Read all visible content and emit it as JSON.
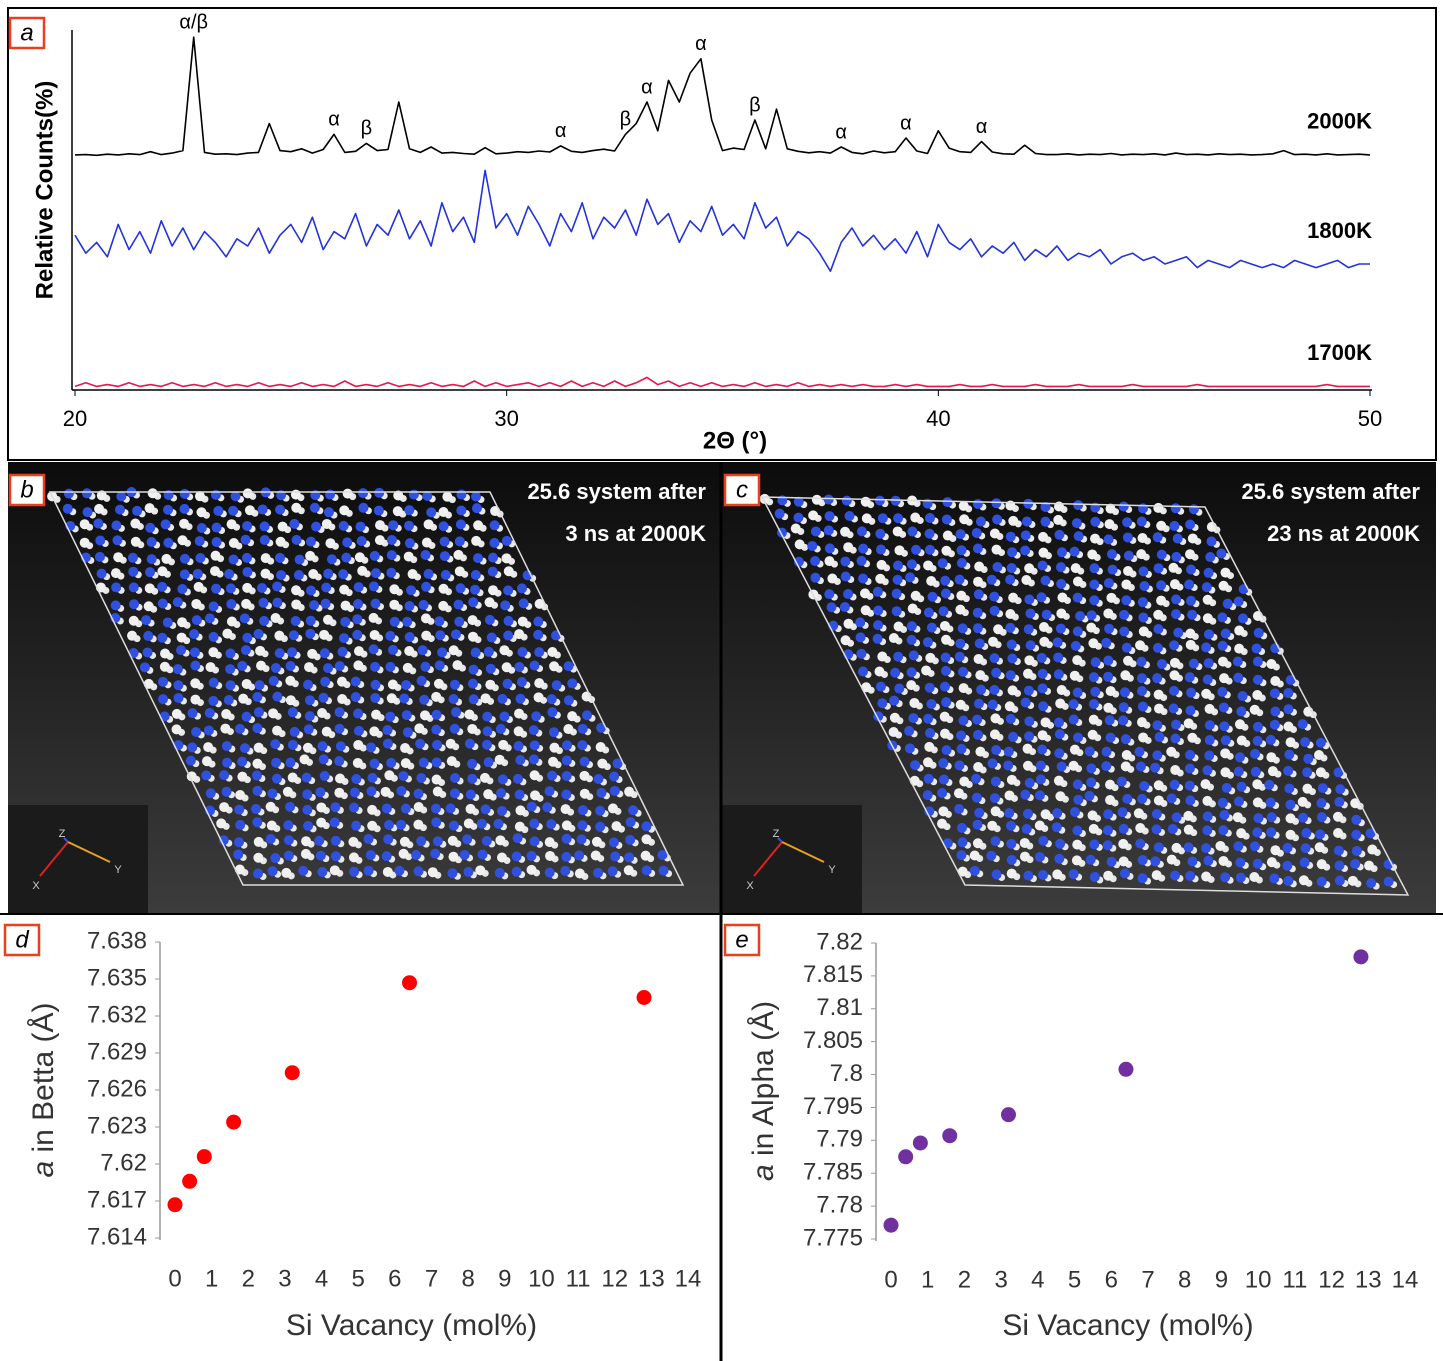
{
  "chart_data": [
    {
      "type": "line",
      "panel": "a",
      "xlabel": "2Θ (°)",
      "ylabel": "Relative Counts(%)",
      "xlim": [
        20,
        50
      ],
      "ylim": [
        0,
        100
      ],
      "xticks": [
        20,
        30,
        40,
        50
      ],
      "x": [
        20,
        20.25,
        20.5,
        20.75,
        21,
        21.25,
        21.5,
        21.75,
        22,
        22.25,
        22.5,
        22.75,
        23,
        23.25,
        23.5,
        23.75,
        24,
        24.25,
        24.5,
        24.75,
        25,
        25.25,
        25.5,
        25.75,
        26,
        26.25,
        26.5,
        26.75,
        27,
        27.25,
        27.5,
        27.75,
        28,
        28.25,
        28.5,
        28.75,
        29,
        29.25,
        29.5,
        29.75,
        30,
        30.25,
        30.5,
        30.75,
        31,
        31.25,
        31.5,
        31.75,
        32,
        32.25,
        32.5,
        32.75,
        33,
        33.25,
        33.5,
        33.75,
        34,
        34.25,
        34.5,
        34.75,
        35,
        35.25,
        35.5,
        35.75,
        36,
        36.25,
        36.5,
        36.75,
        37,
        37.25,
        37.5,
        37.75,
        38,
        38.25,
        38.5,
        38.75,
        39,
        39.25,
        39.5,
        39.75,
        40,
        40.25,
        40.5,
        40.75,
        41,
        41.25,
        41.5,
        41.75,
        42,
        42.25,
        42.5,
        42.75,
        43,
        43.25,
        43.5,
        43.75,
        44,
        44.25,
        44.5,
        44.75,
        45,
        45.25,
        45.5,
        45.75,
        46,
        46.25,
        46.5,
        46.75,
        47,
        47.25,
        47.5,
        47.75,
        48,
        48.25,
        48.5,
        48.75,
        49,
        49.25,
        49.5,
        49.75,
        50
      ],
      "series": [
        {
          "name": "2000K",
          "color": "#000000",
          "values": [
            65.3,
            65.4,
            65.2,
            65.5,
            65.3,
            65.6,
            65.4,
            66.2,
            65.4,
            65.8,
            66.5,
            98,
            66,
            65.5,
            65.6,
            65.4,
            65.8,
            66,
            74,
            66.5,
            66.2,
            67,
            65.8,
            66.8,
            71,
            66,
            66.3,
            68.5,
            66.5,
            66.8,
            80,
            67,
            66,
            67.5,
            65.8,
            66,
            65.7,
            65.5,
            67.3,
            65.6,
            65.8,
            66.2,
            66,
            66.4,
            66.1,
            67.8,
            66.3,
            66,
            66.5,
            66.9,
            66.4,
            71,
            74,
            80,
            72,
            86,
            80,
            88,
            92,
            75,
            66.5,
            67.2,
            66.8,
            75,
            67,
            78,
            67,
            66.3,
            65.9,
            66.2,
            65.8,
            67.5,
            66,
            65.6,
            66.4,
            65.9,
            66.2,
            70,
            66.4,
            65.7,
            72,
            67.2,
            66.2,
            66,
            69,
            66.1,
            65.6,
            65.5,
            68,
            65.7,
            65.4,
            65.4,
            65.6,
            65.3,
            65.5,
            65.4,
            65.7,
            65.3,
            65.5,
            65.4,
            65.6,
            65.3,
            65.8,
            65.4,
            65.5,
            65.3,
            65.6,
            65.4,
            65.5,
            65.3,
            65.4,
            65.6,
            66.5,
            65.4,
            65.5,
            65.3,
            65.6,
            65.3,
            65.4,
            65.5,
            65.3
          ]
        },
        {
          "name": "1800K",
          "color": "#2233dd",
          "values": [
            43,
            38,
            41,
            37,
            46,
            39,
            44,
            38,
            47,
            40,
            45,
            39,
            44,
            41,
            37,
            42,
            40,
            45,
            38,
            43,
            46,
            41,
            48,
            39,
            44,
            42,
            49,
            40,
            46,
            43,
            50,
            42,
            47,
            40,
            52,
            44,
            48,
            41,
            61,
            45,
            49,
            43,
            51,
            46,
            40,
            49,
            44,
            52,
            42,
            48,
            45,
            50,
            43,
            53,
            46,
            49,
            41,
            47,
            44,
            51,
            43,
            46,
            42,
            52,
            45,
            48,
            40,
            44,
            42,
            38,
            33,
            41,
            45,
            40,
            43,
            39,
            42,
            38,
            44,
            37,
            46,
            41,
            39,
            42,
            37,
            40,
            38,
            41,
            36,
            39,
            37,
            40,
            36,
            38,
            37,
            39,
            35,
            37,
            38,
            36,
            37,
            35,
            36,
            37,
            34,
            36,
            35,
            34,
            36,
            35,
            34,
            35,
            34,
            36,
            35,
            34,
            35,
            36,
            34,
            35,
            35
          ]
        },
        {
          "name": "1700K",
          "color": "#e8174a",
          "values": [
            1,
            2,
            1,
            1.5,
            1,
            2,
            1,
            1.5,
            1,
            2,
            1,
            1.5,
            1,
            2,
            1,
            1.5,
            1,
            2,
            1,
            1.5,
            1,
            2,
            1,
            1.5,
            1,
            2.5,
            1,
            1.5,
            1,
            2,
            1,
            1.5,
            1,
            2,
            1,
            1.5,
            1,
            2.5,
            1,
            2,
            1,
            1.5,
            2,
            1,
            2,
            1,
            2.5,
            1,
            2,
            1,
            2.5,
            1,
            2,
            3.5,
            1.5,
            2.5,
            1,
            2,
            1,
            2,
            1,
            1.5,
            1,
            2,
            1,
            1.5,
            1,
            2,
            1,
            1.5,
            1,
            1.5,
            1,
            1.5,
            1,
            1,
            1.5,
            1,
            1.5,
            1,
            1,
            1,
            1.5,
            1,
            1,
            1.5,
            1,
            1,
            1,
            1.5,
            1,
            1,
            1,
            1.5,
            1,
            1,
            1,
            1,
            1.5,
            1,
            1,
            1,
            1,
            1,
            1.5,
            1,
            1,
            1,
            1,
            1,
            1,
            1,
            1,
            1,
            1,
            1,
            1.5,
            1,
            1,
            1,
            1
          ]
        }
      ],
      "annotations": [
        {
          "text": "α/β",
          "x": 22.75
        },
        {
          "text": "α",
          "x": 26
        },
        {
          "text": "β",
          "x": 26.75
        },
        {
          "text": "α",
          "x": 31.25
        },
        {
          "text": "β",
          "x": 32.75
        },
        {
          "text": "α",
          "x": 33.25
        },
        {
          "text": "α",
          "x": 34.5
        },
        {
          "text": "β",
          "x": 35.75
        },
        {
          "text": "α",
          "x": 37.75
        },
        {
          "text": "α",
          "x": 39.25
        },
        {
          "text": "α",
          "x": 41
        }
      ]
    },
    {
      "type": "scatter",
      "panel": "d",
      "xlabel": "Si Vacancy (mol%)",
      "ylabel": {
        "symbol": "a",
        "text": " in Betta (Å)"
      },
      "xlim": [
        0,
        14
      ],
      "ylim": [
        7.614,
        7.638
      ],
      "xticks": [
        0,
        1,
        2,
        3,
        4,
        5,
        6,
        7,
        8,
        9,
        10,
        11,
        12,
        13,
        14
      ],
      "yticks": [
        7.614,
        7.617,
        7.62,
        7.623,
        7.626,
        7.629,
        7.632,
        7.635,
        7.638
      ],
      "color": "#ff0000",
      "x": [
        0,
        0.4,
        0.8,
        1.6,
        3.2,
        6.4,
        12.8
      ],
      "values": [
        7.6167,
        7.6186,
        7.6206,
        7.6234,
        7.6274,
        7.6347,
        7.6335
      ]
    },
    {
      "type": "scatter",
      "panel": "e",
      "xlabel": "Si Vacancy (mol%)",
      "ylabel": {
        "symbol": "a",
        "text": " in Alpha (Å)"
      },
      "xlim": [
        0,
        14
      ],
      "ylim": [
        7.775,
        7.82
      ],
      "xticks": [
        0,
        1,
        2,
        3,
        4,
        5,
        6,
        7,
        8,
        9,
        10,
        11,
        12,
        13,
        14
      ],
      "yticks": [
        7.775,
        7.78,
        7.785,
        7.79,
        7.795,
        7.8,
        7.805,
        7.81,
        7.815,
        7.82
      ],
      "color": "#7030a0",
      "x": [
        0,
        0.4,
        0.8,
        1.6,
        3.2,
        6.4,
        12.8
      ],
      "values": [
        7.7771,
        7.7875,
        7.7896,
        7.7907,
        7.7939,
        7.8008,
        7.8179
      ]
    }
  ],
  "images": [
    {
      "panel": "b",
      "caption": [
        "25.6 system after",
        "3 ns at 2000K"
      ],
      "axes": [
        "Z",
        "Y",
        "X"
      ]
    },
    {
      "panel": "c",
      "caption": [
        "25.6 system after",
        "23 ns at 2000K"
      ],
      "axes": [
        "Z",
        "Y",
        "X"
      ]
    }
  ]
}
